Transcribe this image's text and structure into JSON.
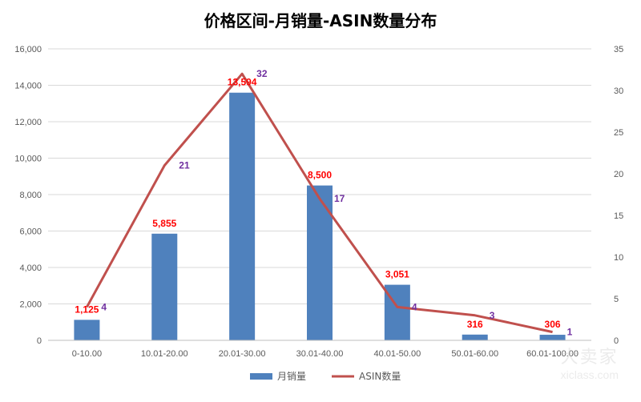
{
  "chart_data": {
    "type": "bar",
    "title": "价格区间-月销量-ASIN数量分布",
    "categories": [
      "0-10.00",
      "10.01-20.00",
      "20.01-30.00",
      "30.01-40.00",
      "40.01-50.00",
      "50.01-60.00",
      "60.01-100.00"
    ],
    "series": [
      {
        "name": "月销量",
        "type": "bar",
        "axis": "left",
        "color": "#4F81BD",
        "label_color": "#FF0000",
        "values": [
          1125,
          5855,
          13594,
          8500,
          3051,
          316,
          306
        ],
        "labels": [
          "1,125",
          "5,855",
          "13,594",
          "8,500",
          "3,051",
          "316",
          "306"
        ]
      },
      {
        "name": "ASIN数量",
        "type": "line",
        "axis": "right",
        "color": "#C0504D",
        "label_color": "#7030A0",
        "values": [
          4,
          21,
          32,
          17,
          4,
          3,
          1
        ],
        "labels": [
          "4",
          "21",
          "32",
          "17",
          "4",
          "3",
          "1"
        ]
      }
    ],
    "y_left": {
      "range": [
        0,
        16000
      ],
      "ticks": [
        "0",
        "2,000",
        "4,000",
        "6,000",
        "8,000",
        "10,000",
        "12,000",
        "14,000",
        "16,000"
      ]
    },
    "y_right": {
      "range": [
        0,
        35
      ],
      "ticks": [
        "0",
        "5",
        "10",
        "15",
        "20",
        "25",
        "30",
        "35"
      ]
    },
    "grid": true,
    "legend_position": "bottom"
  },
  "watermark": {
    "text_cn": "大卖家",
    "text_en": "xiclass.com"
  }
}
